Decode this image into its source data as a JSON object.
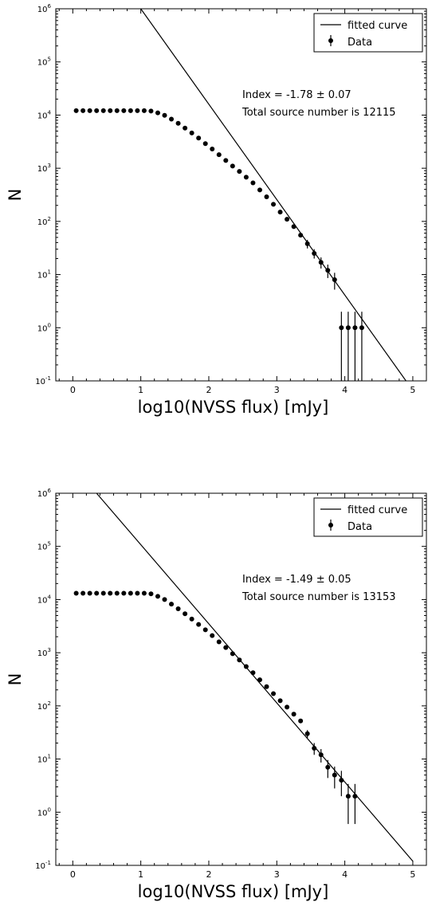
{
  "chart_data": [
    {
      "type": "scatter",
      "xlabel": "log10(NVSS flux) [mJy]",
      "ylabel": "N",
      "xlim": [
        -0.25,
        5.2
      ],
      "ylim_log10": [
        -1,
        6
      ],
      "y_scale": "log",
      "xticks": [
        0,
        1,
        2,
        3,
        4,
        5
      ],
      "xtick_labels": [
        "0",
        "1",
        "2",
        "3",
        "4",
        "5"
      ],
      "ytick_exponents": [
        -1,
        0,
        1,
        2,
        3,
        4,
        5,
        6
      ],
      "ytick_base": "10",
      "legend_position": "top-right",
      "legend": [
        {
          "label": "fitted curve",
          "marker": "line"
        },
        {
          "label": "Data",
          "marker": "point-errorbar"
        }
      ],
      "annotations": [
        "Index = -1.78 ± 0.07",
        "Total source number is 12115"
      ],
      "fit_line": {
        "x": [
          1.0,
          4.9
        ],
        "y": [
          1000000,
          0.1
        ]
      },
      "series": [
        {
          "name": "Data",
          "x": [
            0.05,
            0.15,
            0.25,
            0.35,
            0.45,
            0.55,
            0.65,
            0.75,
            0.85,
            0.95,
            1.05,
            1.15,
            1.25,
            1.35,
            1.45,
            1.55,
            1.65,
            1.75,
            1.85,
            1.95,
            2.05,
            2.15,
            2.25,
            2.35,
            2.45,
            2.55,
            2.65,
            2.75,
            2.85,
            2.95,
            3.05,
            3.15,
            3.25,
            3.35,
            3.45,
            3.55,
            3.65,
            3.75,
            3.85,
            3.95,
            4.05,
            4.15,
            4.25
          ],
          "y": [
            12115,
            12115,
            12115,
            12115,
            12115,
            12115,
            12115,
            12115,
            12115,
            12115,
            12115,
            11900,
            11000,
            9900,
            8400,
            7000,
            5700,
            4600,
            3700,
            2900,
            2300,
            1800,
            1400,
            1100,
            870,
            680,
            530,
            390,
            290,
            210,
            150,
            110,
            80,
            55,
            38,
            25,
            17,
            12,
            8,
            1,
            1,
            1,
            1
          ],
          "err_low": [
            0,
            0,
            0,
            0,
            0,
            0,
            0,
            0,
            0,
            0,
            0,
            0,
            0,
            0,
            0,
            0,
            0,
            0,
            0,
            0,
            0,
            0,
            0,
            0,
            0,
            0,
            0,
            0,
            0,
            0,
            0,
            0,
            0,
            0,
            7,
            5,
            4,
            3.4,
            2.8,
            0.9,
            0.9,
            0.9,
            0.9
          ],
          "err_high": [
            0,
            0,
            0,
            0,
            0,
            0,
            0,
            0,
            0,
            0,
            0,
            0,
            0,
            0,
            0,
            0,
            0,
            0,
            0,
            0,
            0,
            0,
            0,
            0,
            0,
            0,
            0,
            0,
            0,
            0,
            0,
            0,
            0,
            0,
            7,
            5,
            4,
            3.4,
            2.8,
            1,
            1,
            1,
            1
          ]
        }
      ]
    },
    {
      "type": "scatter",
      "xlabel": "log10(NVSS flux) [mJy]",
      "ylabel": "N",
      "xlim": [
        -0.25,
        5.2
      ],
      "ylim_log10": [
        -1,
        6
      ],
      "y_scale": "log",
      "xticks": [
        0,
        1,
        2,
        3,
        4,
        5
      ],
      "xtick_labels": [
        "0",
        "1",
        "2",
        "3",
        "4",
        "5"
      ],
      "ytick_exponents": [
        -1,
        0,
        1,
        2,
        3,
        4,
        5,
        6
      ],
      "ytick_base": "10",
      "legend_position": "top-right",
      "legend": [
        {
          "label": "fitted curve",
          "marker": "line"
        },
        {
          "label": "Data",
          "marker": "point-errorbar"
        }
      ],
      "annotations": [
        "Index = -1.49 ± 0.05",
        "Total source number is 13153"
      ],
      "fit_line": {
        "x": [
          0.35,
          5.0
        ],
        "y": [
          1000000,
          0.12
        ]
      },
      "series": [
        {
          "name": "Data",
          "x": [
            0.05,
            0.15,
            0.25,
            0.35,
            0.45,
            0.55,
            0.65,
            0.75,
            0.85,
            0.95,
            1.05,
            1.15,
            1.25,
            1.35,
            1.45,
            1.55,
            1.65,
            1.75,
            1.85,
            1.95,
            2.05,
            2.15,
            2.25,
            2.35,
            2.45,
            2.55,
            2.65,
            2.75,
            2.85,
            2.95,
            3.05,
            3.15,
            3.25,
            3.35,
            3.45,
            3.55,
            3.65,
            3.75,
            3.85,
            3.95,
            4.05,
            4.15
          ],
          "y": [
            13153,
            13153,
            13153,
            13153,
            13153,
            13153,
            13153,
            13153,
            13153,
            13153,
            13153,
            12800,
            11500,
            10000,
            8200,
            6700,
            5400,
            4300,
            3400,
            2700,
            2100,
            1600,
            1250,
            960,
            730,
            550,
            420,
            310,
            230,
            170,
            125,
            95,
            70,
            52,
            30,
            16,
            12,
            7,
            5,
            4,
            2,
            2
          ],
          "err_low": [
            0,
            0,
            0,
            0,
            0,
            0,
            0,
            0,
            0,
            0,
            0,
            0,
            0,
            0,
            0,
            0,
            0,
            0,
            0,
            0,
            0,
            0,
            0,
            0,
            0,
            0,
            0,
            0,
            0,
            0,
            0,
            0,
            0,
            0,
            5,
            4,
            3.4,
            2.6,
            2.2,
            2,
            1.4,
            1.4
          ],
          "err_high": [
            0,
            0,
            0,
            0,
            0,
            0,
            0,
            0,
            0,
            0,
            0,
            0,
            0,
            0,
            0,
            0,
            0,
            0,
            0,
            0,
            0,
            0,
            0,
            0,
            0,
            0,
            0,
            0,
            0,
            0,
            0,
            0,
            0,
            0,
            5,
            4,
            3.4,
            2.6,
            2.2,
            2,
            1.4,
            1.4
          ]
        }
      ]
    }
  ]
}
